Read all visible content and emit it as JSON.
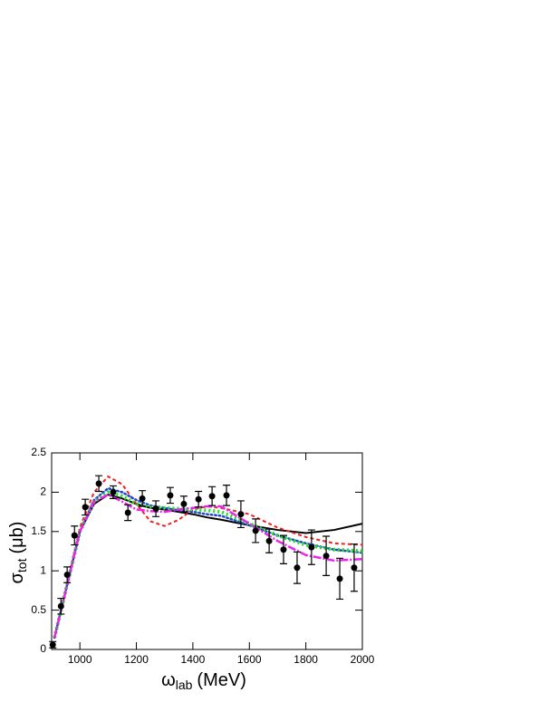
{
  "chart_data": {
    "type": "line",
    "x_label": "ω",
    "x_label_subscript": "lab",
    "x_label_unit": "(MeV)",
    "y_label": "σ",
    "y_label_subscript": "tot",
    "y_label_unit": "(μb)",
    "xlim": [
      900,
      2000
    ],
    "xticks": [
      1000,
      1200,
      1400,
      1600,
      1800,
      2000
    ],
    "ylim": [
      0,
      2.5
    ],
    "yticks": [
      0,
      0.5,
      1,
      1.5,
      2,
      2.5
    ],
    "x": [
      910,
      950,
      1000,
      1050,
      1100,
      1150,
      1200,
      1250,
      1300,
      1350,
      1400,
      1450,
      1500,
      1600,
      1700,
      1800,
      1900,
      2000
    ],
    "series": [
      {
        "color": "#000000",
        "style": "solid",
        "values": [
          0.15,
          0.75,
          1.5,
          1.85,
          1.97,
          1.92,
          1.85,
          1.8,
          1.78,
          1.75,
          1.72,
          1.68,
          1.65,
          1.58,
          1.52,
          1.48,
          1.52,
          1.6
        ]
      },
      {
        "color": "#ee2222",
        "style": "dashed",
        "values": [
          0.15,
          0.75,
          1.55,
          2.0,
          2.2,
          2.1,
          1.85,
          1.63,
          1.57,
          1.65,
          1.78,
          1.82,
          1.8,
          1.72,
          1.55,
          1.43,
          1.35,
          1.33
        ]
      },
      {
        "color": "#2244cc",
        "style": "dotted",
        "values": [
          0.15,
          0.75,
          1.5,
          1.9,
          2.05,
          2.0,
          1.9,
          1.83,
          1.8,
          1.77,
          1.75,
          1.72,
          1.7,
          1.58,
          1.45,
          1.35,
          1.27,
          1.23
        ]
      },
      {
        "color": "#22dd22",
        "style": "thick-dotted",
        "values": [
          0.15,
          0.75,
          1.5,
          1.88,
          2.0,
          1.95,
          1.85,
          1.81,
          1.8,
          1.79,
          1.78,
          1.77,
          1.75,
          1.6,
          1.45,
          1.33,
          1.27,
          1.25
        ]
      },
      {
        "color": "#ee22ee",
        "style": "dash-dot",
        "values": [
          0.15,
          0.75,
          1.5,
          1.88,
          1.97,
          1.88,
          1.78,
          1.76,
          1.75,
          1.78,
          1.8,
          1.82,
          1.82,
          1.6,
          1.38,
          1.2,
          1.13,
          1.15
        ]
      }
    ],
    "measurements": {
      "color": "#000000",
      "x": [
        904,
        933,
        955,
        981,
        1019,
        1067,
        1118,
        1170,
        1221,
        1269,
        1320,
        1368,
        1420,
        1468,
        1519,
        1570,
        1622,
        1670,
        1721,
        1769,
        1820,
        1872,
        1920,
        1971
      ],
      "values": [
        0.06,
        0.55,
        0.95,
        1.45,
        1.81,
        2.11,
        2.0,
        1.74,
        1.92,
        1.79,
        1.96,
        1.85,
        1.91,
        1.95,
        1.96,
        1.72,
        1.51,
        1.38,
        1.27,
        1.04,
        1.3,
        1.19,
        0.9,
        1.04
      ],
      "errors": [
        0.04,
        0.1,
        0.1,
        0.12,
        0.1,
        0.1,
        0.08,
        0.1,
        0.1,
        0.1,
        0.1,
        0.1,
        0.1,
        0.12,
        0.13,
        0.17,
        0.15,
        0.15,
        0.18,
        0.2,
        0.22,
        0.25,
        0.26,
        0.3
      ]
    }
  }
}
